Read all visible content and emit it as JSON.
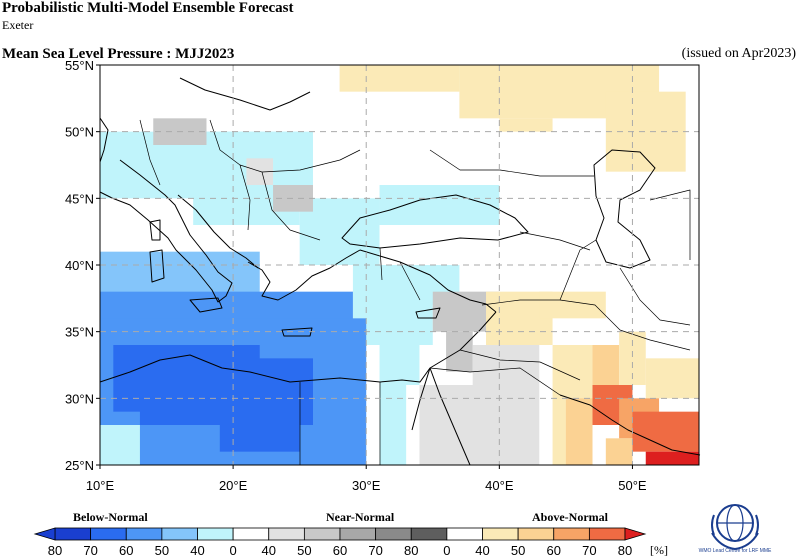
{
  "header": {
    "title": "Probabilistic Multi-Model Ensemble Forecast",
    "subtitle": "Exeter",
    "variable": "Mean Sea Level Pressure : MJJ2023",
    "issued": "(issued on Apr2023)"
  },
  "map": {
    "lon_range": [
      10,
      55
    ],
    "lat_range": [
      25,
      55
    ],
    "lon_ticks": [
      "10°E",
      "20°E",
      "30°E",
      "40°E",
      "50°E"
    ],
    "lat_ticks": [
      "25°N",
      "30°N",
      "35°N",
      "40°N",
      "45°N",
      "50°N",
      "55°N"
    ],
    "grid": true
  },
  "legend": {
    "categories": [
      "Below-Normal",
      "Near-Normal",
      "Above-Normal"
    ],
    "labels": [
      "80",
      "70",
      "60",
      "50",
      "40",
      "0",
      "40",
      "50",
      "60",
      "70",
      "80",
      "0",
      "40",
      "50",
      "60",
      "70",
      "80"
    ],
    "unit": "[%]",
    "colors": {
      "below": [
        "#1a3fd0",
        "#2a6cf0",
        "#4d96f6",
        "#84c5fa",
        "#c0f4fb"
      ],
      "near": [
        "#e2e2e2",
        "#c8c8c8",
        "#a8a8a8",
        "#8a8a8a",
        "#5e5e5e"
      ],
      "above": [
        "#fbeab7",
        "#fbd293",
        "#f7a466",
        "#ef6b43",
        "#dd1f1f"
      ]
    }
  },
  "logo": {
    "text": "WMO Lead Centre for LRF MME"
  }
}
